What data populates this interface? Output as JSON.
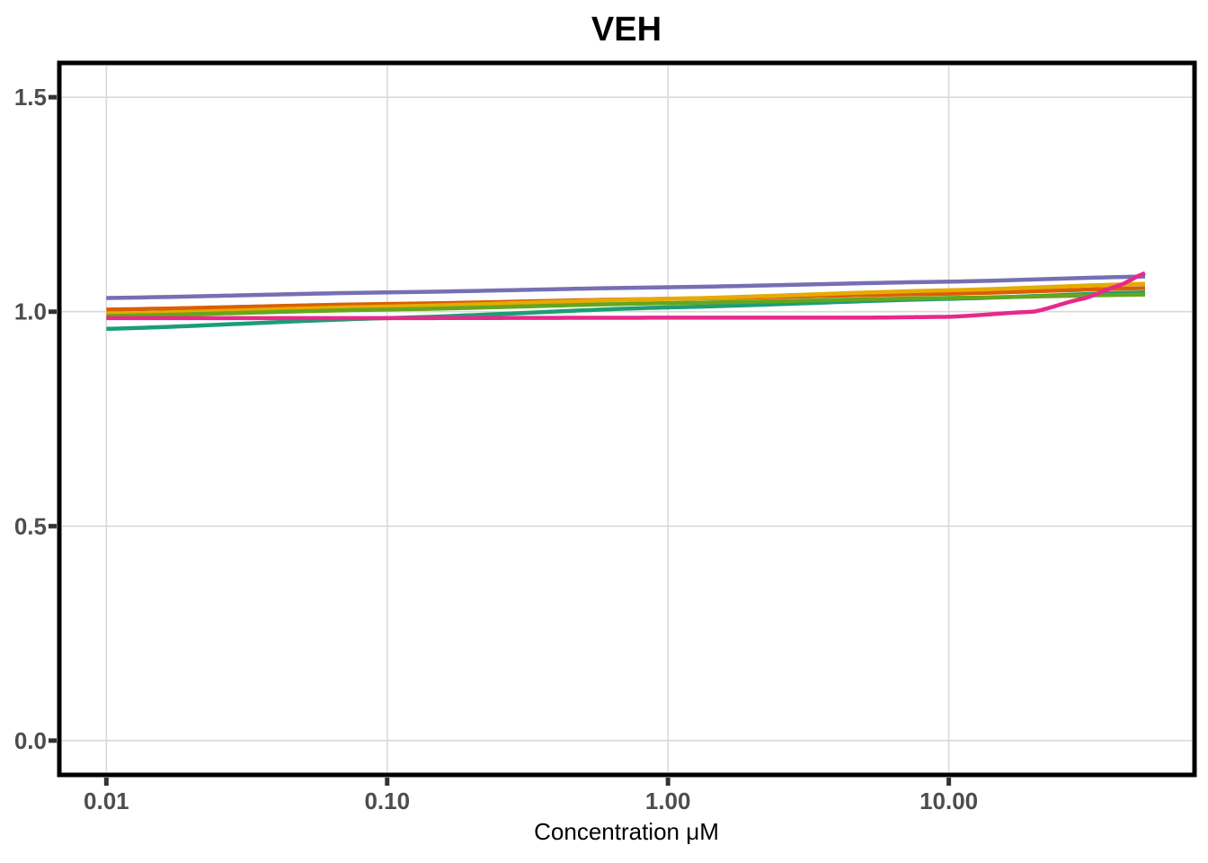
{
  "chart_data": {
    "type": "line",
    "title": "VEH",
    "xlabel": "Concentration μM",
    "ylabel": "",
    "x_scale": "log10",
    "xlim": [
      0.0068,
      75
    ],
    "ylim": [
      -0.08,
      1.58
    ],
    "x_ticks": [
      0.01,
      0.1,
      1,
      10
    ],
    "x_tick_labels": [
      "0.01",
      "0.10",
      "1.00",
      "10.00"
    ],
    "y_ticks": [
      0,
      0.5,
      1,
      1.5
    ],
    "y_tick_labels": [
      "0.0",
      "0.5",
      "1.0",
      "1.5"
    ],
    "grid": true,
    "legend": "none",
    "series": [
      {
        "color": "#1b9e77",
        "x": [
          0.01,
          0.1,
          1,
          10,
          50
        ],
        "y": [
          0.96,
          0.985,
          1.01,
          1.03,
          1.045
        ]
      },
      {
        "color": "#d95f02",
        "x": [
          0.01,
          0.1,
          1,
          10,
          50
        ],
        "y": [
          1.005,
          1.018,
          1.03,
          1.042,
          1.055
        ]
      },
      {
        "color": "#e6ab02",
        "x": [
          0.01,
          0.1,
          1,
          10,
          50
        ],
        "y": [
          0.995,
          1.012,
          1.03,
          1.05,
          1.065
        ]
      },
      {
        "color": "#66a61e",
        "x": [
          0.01,
          0.1,
          1,
          10,
          50
        ],
        "y": [
          0.99,
          1.005,
          1.02,
          1.032,
          1.04
        ]
      },
      {
        "color": "#7570b3",
        "x": [
          0.01,
          0.1,
          1,
          10,
          50
        ],
        "y": [
          1.032,
          1.045,
          1.057,
          1.07,
          1.082
        ]
      },
      {
        "color": "#e7298a",
        "x": [
          0.01,
          0.1,
          1,
          5,
          10,
          20,
          30,
          40,
          50
        ],
        "y": [
          0.985,
          0.985,
          0.986,
          0.986,
          0.988,
          1.0,
          1.03,
          1.06,
          1.09
        ]
      }
    ]
  }
}
